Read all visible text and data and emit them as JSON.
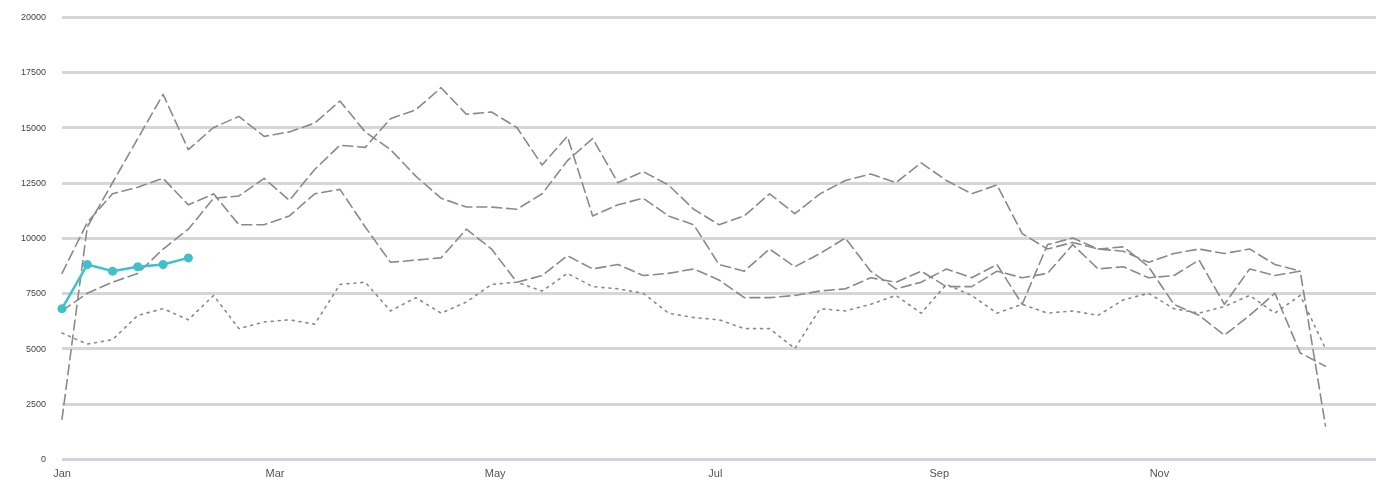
{
  "chart_data": {
    "type": "line",
    "x": [
      "--01-01",
      "--01-08",
      "--01-15",
      "--01-22",
      "--01-29",
      "--02-05",
      "--02-12",
      "--02-19",
      "--02-26",
      "--03-05",
      "--03-12",
      "--03-19",
      "--03-26",
      "--04-02",
      "--04-09",
      "--04-16",
      "--04-23",
      "--04-30",
      "--05-07",
      "--05-14",
      "--05-21",
      "--05-28",
      "--06-04",
      "--06-11",
      "--06-18",
      "--06-25",
      "--07-02",
      "--07-09",
      "--07-16",
      "--07-23",
      "--07-30",
      "--08-06",
      "--08-13",
      "--08-20",
      "--08-27",
      "--09-03",
      "--09-10",
      "--09-17",
      "--09-24",
      "--10-01",
      "--10-08",
      "--10-15",
      "--10-22",
      "--10-29",
      "--11-05",
      "--11-12",
      "--11-19",
      "--11-26",
      "--12-03",
      "--12-10",
      "--12-17"
    ],
    "series": [
      {
        "color": "#8a8a8a",
        "line_style": "dashed",
        "marker": "none",
        "values": [
          1800,
          10500,
          12500,
          14500,
          16500,
          14000,
          15000,
          15500,
          14600,
          14800,
          15200,
          16200,
          14800,
          14000,
          12800,
          11800,
          11400,
          11400,
          11300,
          12000,
          13500,
          14500,
          12500,
          13000,
          12400,
          11300,
          10600,
          11000,
          12000,
          11100,
          12000,
          12600,
          12900,
          12500,
          13400,
          12600,
          12000,
          12400,
          10200,
          9500,
          9800,
          9500,
          9400,
          8900,
          9300,
          9500,
          9300,
          9500,
          8800,
          8500,
          null
        ]
      },
      {
        "color": "#8a8a8a",
        "line_style": "dashed",
        "marker": "none",
        "values": [
          6700,
          7500,
          8000,
          8400,
          9500,
          10400,
          11800,
          11900,
          12700,
          11700,
          13100,
          14200,
          14100,
          15400,
          15800,
          16800,
          15600,
          15700,
          15000,
          13300,
          14600,
          11000,
          11500,
          11800,
          11000,
          10600,
          8800,
          8500,
          9500,
          8700,
          9300,
          10000,
          8500,
          7700,
          8000,
          8600,
          8200,
          8800,
          7000,
          9700,
          10000,
          9500,
          9600,
          8700,
          7000,
          6500,
          5600,
          6500,
          7500,
          4800,
          4200
        ]
      },
      {
        "color": "#8a8a8a",
        "line_style": "dashed",
        "marker": "none",
        "values": [
          8400,
          10700,
          12000,
          12300,
          12700,
          11500,
          12000,
          10600,
          10600,
          11000,
          12000,
          12200,
          10500,
          8900,
          9000,
          9100,
          10400,
          9500,
          8000,
          8300,
          9200,
          8600,
          8800,
          8300,
          8400,
          8600,
          8100,
          7300,
          7300,
          7400,
          7600,
          7700,
          8200,
          8000,
          8500,
          7800,
          7800,
          8500,
          8200,
          8400,
          9700,
          8600,
          8700,
          8200,
          8300,
          9000,
          7000,
          8600,
          8300,
          8500,
          1500
        ]
      },
      {
        "color": "#8a8a8a",
        "line_style": "dotted",
        "marker": "none",
        "values": [
          5700,
          5200,
          5400,
          6500,
          6800,
          6300,
          7400,
          5900,
          6200,
          6300,
          6100,
          7900,
          8000,
          6700,
          7300,
          6600,
          7100,
          7900,
          8000,
          7600,
          8400,
          7800,
          7700,
          7500,
          6600,
          6400,
          6300,
          5900,
          5900,
          5000,
          6800,
          6700,
          7000,
          7400,
          6600,
          7900,
          7400,
          6600,
          7000,
          6600,
          6700,
          6500,
          7200,
          7500,
          6800,
          6600,
          6900,
          7400,
          6600,
          7400,
          5000
        ]
      },
      {
        "color": "#3fc1c9",
        "line_style": "solid",
        "marker": "circle",
        "values": [
          6800,
          8800,
          8500,
          8700,
          8800,
          9100,
          null,
          null,
          null,
          null,
          null,
          null,
          null,
          null,
          null,
          null,
          null,
          null,
          null,
          null,
          null,
          null,
          null,
          null,
          null,
          null,
          null,
          null,
          null,
          null,
          null,
          null,
          null,
          null,
          null,
          null,
          null,
          null,
          null,
          null,
          null,
          null,
          null,
          null,
          null,
          null,
          null,
          null,
          null,
          null,
          null
        ]
      }
    ],
    "xlim": [
      "--01-01",
      "--12-31"
    ],
    "xticks": [
      {
        "value": "--01-01",
        "label": "Jan"
      },
      {
        "value": "--03-01",
        "label": "Mar"
      },
      {
        "value": "--05-01",
        "label": "May"
      },
      {
        "value": "--07-01",
        "label": "Jul"
      },
      {
        "value": "--09-01",
        "label": "Sep"
      },
      {
        "value": "--11-01",
        "label": "Nov"
      }
    ],
    "ylim": [
      0,
      20000
    ],
    "yticks": [
      0,
      2500,
      5000,
      7500,
      10000,
      12500,
      15000,
      17500,
      20000
    ],
    "grid": "y"
  }
}
